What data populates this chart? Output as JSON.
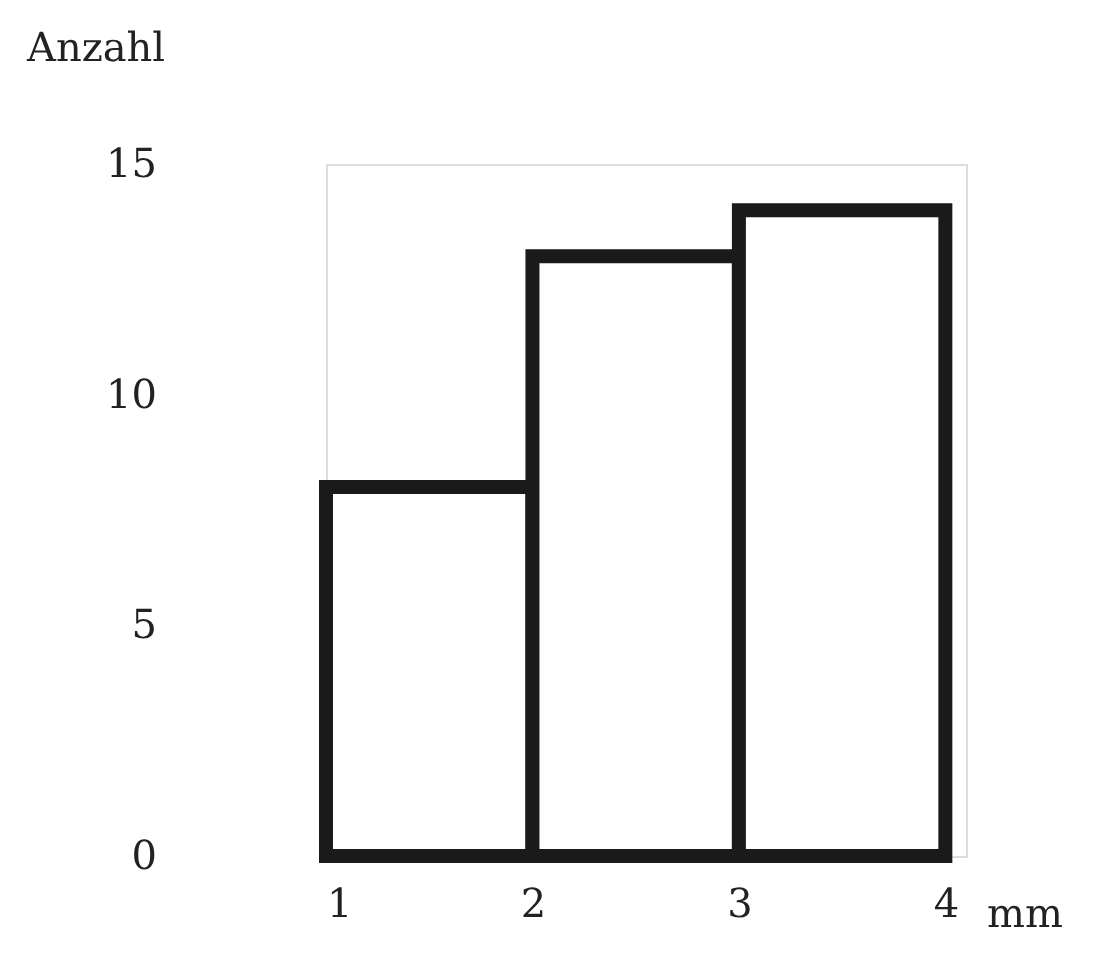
{
  "chart_data": {
    "type": "histogram",
    "xlabel": "mm",
    "ylabel": "Anzahl",
    "bins": [
      1,
      2,
      3,
      4
    ],
    "values": [
      8,
      13,
      14
    ],
    "color": "#ffffff",
    "xlim": [
      1,
      4.1
    ],
    "ylim": [
      0,
      15
    ],
    "xticks": [
      1,
      2,
      3,
      4
    ],
    "yticks": [
      0,
      5,
      10,
      15
    ],
    "grid": false
  }
}
